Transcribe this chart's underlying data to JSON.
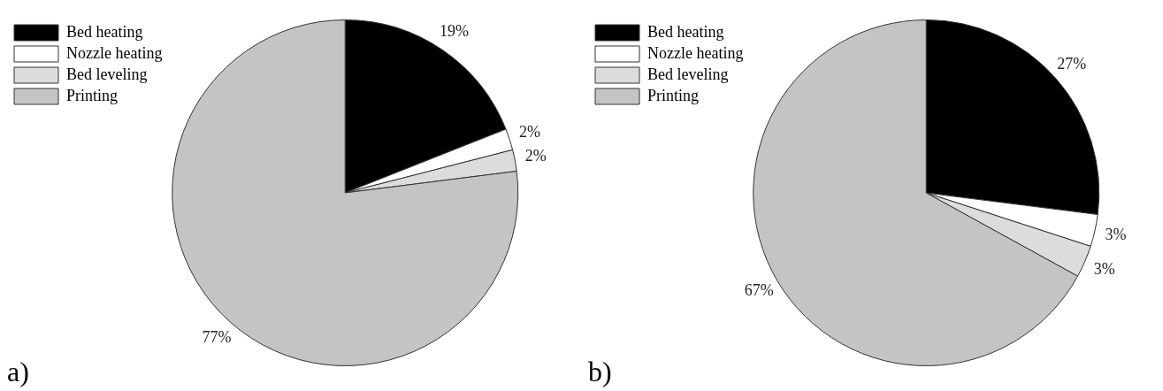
{
  "chart_data": [
    {
      "type": "pie",
      "title": "a)",
      "categories": [
        "Bed heating",
        "Nozzle heating",
        "Bed leveling",
        "Printing"
      ],
      "values": [
        19,
        2,
        2,
        77
      ],
      "value_labels": [
        "19%",
        "2%",
        "2%",
        "77%"
      ],
      "colors": [
        "#000000",
        "#ffffff",
        "#dcdcdc",
        "#c4c4c4"
      ],
      "legend": "top left"
    },
    {
      "type": "pie",
      "title": "b)",
      "categories": [
        "Bed heating",
        "Nozzle heating",
        "Bed leveling",
        "Printing"
      ],
      "values": [
        27,
        3,
        3,
        67
      ],
      "value_labels": [
        "27%",
        "3%",
        "3%",
        "67%"
      ],
      "colors": [
        "#000000",
        "#ffffff",
        "#dcdcdc",
        "#c4c4c4"
      ],
      "legend": "top left"
    }
  ]
}
